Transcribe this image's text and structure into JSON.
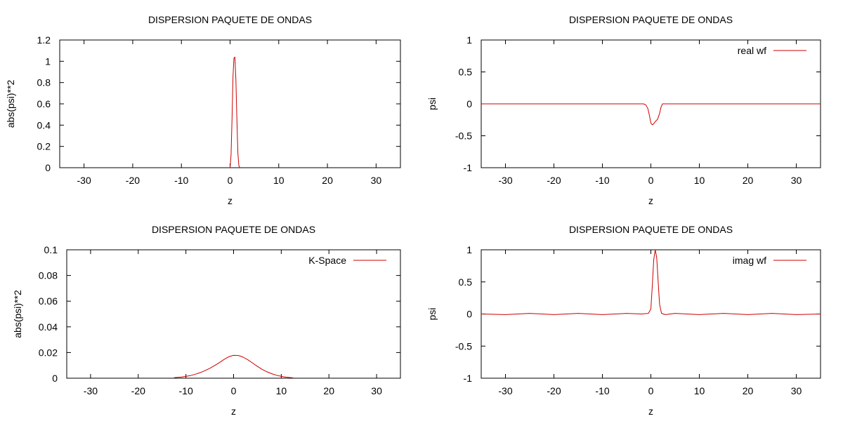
{
  "chart_data": [
    {
      "type": "line",
      "title": "DISPERSION PAQUETE DE ONDAS",
      "xlabel": "z",
      "ylabel": "abs(psi)**2",
      "xlim": [
        -35,
        35
      ],
      "ylim": [
        0,
        1.2
      ],
      "xticks": [
        -30,
        -20,
        -10,
        0,
        10,
        20,
        30
      ],
      "xtick_labels": [
        "-30",
        "-20",
        "-10",
        "0",
        "10",
        "20",
        "30"
      ],
      "yticks": [
        0,
        0.2,
        0.4,
        0.6,
        0.8,
        1,
        1.2
      ],
      "ytick_labels": [
        "0",
        "0.2",
        "0.4",
        "0.6",
        "0.8",
        "1",
        "1.2"
      ],
      "grid": false,
      "legend": null,
      "series": [
        {
          "color": "#cc0000",
          "x": [
            0.0,
            0.2,
            0.4,
            0.6,
            0.8,
            1.0,
            1.2,
            1.4,
            1.6,
            1.8,
            2.0
          ],
          "y": [
            0.0,
            0.12,
            0.46,
            0.86,
            1.03,
            1.04,
            0.82,
            0.46,
            0.14,
            0.02,
            0.0
          ]
        }
      ]
    },
    {
      "type": "line",
      "title": "DISPERSION PAQUETE DE ONDAS",
      "xlabel": "z",
      "ylabel": "psi",
      "xlim": [
        -35,
        35
      ],
      "ylim": [
        -1,
        1
      ],
      "xticks": [
        -30,
        -20,
        -10,
        0,
        10,
        20,
        30
      ],
      "xtick_labels": [
        "-30",
        "-20",
        "-10",
        "0",
        "10",
        "20",
        "30"
      ],
      "yticks": [
        -1,
        -0.5,
        0,
        0.5,
        1
      ],
      "ytick_labels": [
        "-1",
        "-0.5",
        "0",
        "0.5",
        "1"
      ],
      "grid": false,
      "legend": "top-right",
      "series": [
        {
          "name": "real wf",
          "color": "#cc0000",
          "x": [
            -35,
            -1.5,
            -1.0,
            -0.6,
            -0.3,
            0.0,
            0.3,
            0.6,
            1.0,
            1.4,
            1.8,
            2.1,
            2.4,
            3.0,
            35
          ],
          "y": [
            0,
            0,
            -0.02,
            -0.08,
            -0.18,
            -0.3,
            -0.33,
            -0.31,
            -0.27,
            -0.24,
            -0.15,
            -0.05,
            0,
            0,
            0
          ]
        }
      ]
    },
    {
      "type": "line",
      "title": "DISPERSION PAQUETE DE ONDAS",
      "xlabel": "z",
      "ylabel": "abs(psi)**2",
      "xlim": [
        -35,
        35
      ],
      "ylim": [
        0,
        0.1
      ],
      "xticks": [
        -30,
        -20,
        -10,
        0,
        10,
        20,
        30
      ],
      "xtick_labels": [
        "-30",
        "-20",
        "-10",
        "0",
        "10",
        "20",
        "30"
      ],
      "yticks": [
        0,
        0.02,
        0.04,
        0.06,
        0.08,
        0.1
      ],
      "ytick_labels": [
        "0",
        "0.02",
        "0.04",
        "0.06",
        "0.08",
        "0.1"
      ],
      "grid": false,
      "legend": "top-right",
      "series": [
        {
          "name": "K-Space",
          "color": "#cc0000",
          "x": [
            -12.5,
            -11,
            -10,
            -9,
            -8,
            -7,
            -6,
            -5,
            -4,
            -3,
            -2,
            -1,
            0,
            1,
            2,
            3,
            4,
            5,
            6,
            7,
            8,
            9,
            10,
            11,
            12.5
          ],
          "y": [
            0.0004,
            0.0009,
            0.0014,
            0.0021,
            0.0031,
            0.0043,
            0.0059,
            0.0077,
            0.0098,
            0.0121,
            0.0146,
            0.0167,
            0.0178,
            0.0177,
            0.0164,
            0.0143,
            0.0118,
            0.0092,
            0.0069,
            0.005,
            0.0035,
            0.0023,
            0.0014,
            0.0008,
            0.0003
          ]
        }
      ]
    },
    {
      "type": "line",
      "title": "DISPERSION PAQUETE DE ONDAS",
      "xlabel": "z",
      "ylabel": "psi",
      "xlim": [
        -35,
        35
      ],
      "ylim": [
        -1,
        1
      ],
      "xticks": [
        -30,
        -20,
        -10,
        0,
        10,
        20,
        30
      ],
      "xtick_labels": [
        "-30",
        "-20",
        "-10",
        "0",
        "10",
        "20",
        "30"
      ],
      "yticks": [
        -1,
        -0.5,
        0,
        0.5,
        1
      ],
      "ytick_labels": [
        "-1",
        "-0.5",
        "0",
        "0.5",
        "1"
      ],
      "grid": false,
      "legend": "top-right",
      "series": [
        {
          "name": "imag wf",
          "color": "#cc0000",
          "x": [
            -35,
            -30,
            -25,
            -20,
            -15,
            -10,
            -5,
            -2,
            -0.5,
            0.0,
            0.3,
            0.6,
            0.9,
            1.2,
            1.5,
            1.8,
            2.2,
            3.0,
            5,
            10,
            15,
            20,
            25,
            30,
            35
          ],
          "y": [
            0,
            -0.01,
            0.01,
            -0.01,
            0.01,
            -0.01,
            0.01,
            0,
            0.01,
            0.08,
            0.45,
            0.85,
            1.0,
            0.88,
            0.5,
            0.15,
            0.01,
            -0.01,
            0.01,
            -0.01,
            0.01,
            -0.01,
            0.01,
            -0.01,
            0
          ]
        }
      ]
    }
  ]
}
